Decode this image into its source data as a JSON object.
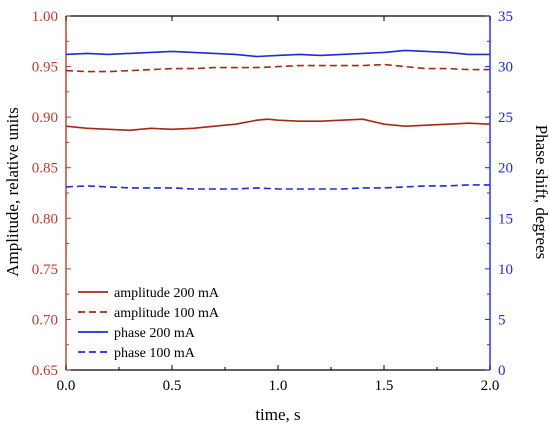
{
  "chart_data": {
    "type": "line",
    "title": "",
    "xlabel": "time, s",
    "ylabel_left": "Amplitude, relative units",
    "ylabel_right": "Phase shift, degrees",
    "xlim": [
      0.0,
      2.0
    ],
    "ylim_left": [
      0.65,
      1.0
    ],
    "ylim_right": [
      0,
      35
    ],
    "x_ticks": [
      "0.0",
      "0.5",
      "1.0",
      "1.5",
      "2.0"
    ],
    "y_left_ticks": [
      "0.65",
      "0.70",
      "0.75",
      "0.80",
      "0.85",
      "0.90",
      "0.95",
      "1.00"
    ],
    "y_right_ticks": [
      "0",
      "5",
      "10",
      "15",
      "20",
      "25",
      "30",
      "35"
    ],
    "grid": false,
    "legend_position": "bottom-left",
    "colors": {
      "left_axis": "#c0392b",
      "right_axis": "#1f2bd6",
      "amplitude": "#a52a14",
      "phase": "#1f2bd6"
    },
    "series": [
      {
        "name": "amplitude 200 mA",
        "axis": "left",
        "style": "solid",
        "x": [
          0.0,
          0.1,
          0.2,
          0.3,
          0.4,
          0.5,
          0.6,
          0.7,
          0.8,
          0.9,
          0.95,
          1.0,
          1.1,
          1.2,
          1.3,
          1.4,
          1.5,
          1.6,
          1.7,
          1.8,
          1.9,
          2.0
        ],
        "values": [
          0.891,
          0.889,
          0.888,
          0.887,
          0.889,
          0.888,
          0.889,
          0.891,
          0.893,
          0.897,
          0.898,
          0.897,
          0.896,
          0.896,
          0.897,
          0.898,
          0.893,
          0.891,
          0.892,
          0.893,
          0.894,
          0.893
        ]
      },
      {
        "name": "amplitude 100 mA",
        "axis": "left",
        "style": "dashed",
        "x": [
          0.0,
          0.1,
          0.2,
          0.3,
          0.4,
          0.5,
          0.6,
          0.7,
          0.8,
          0.9,
          1.0,
          1.1,
          1.2,
          1.3,
          1.4,
          1.5,
          1.6,
          1.7,
          1.8,
          1.9,
          2.0
        ],
        "values": [
          0.946,
          0.945,
          0.945,
          0.946,
          0.947,
          0.948,
          0.948,
          0.949,
          0.949,
          0.949,
          0.95,
          0.951,
          0.951,
          0.951,
          0.951,
          0.952,
          0.95,
          0.948,
          0.948,
          0.947,
          0.947
        ]
      },
      {
        "name": "phase 200 mA",
        "axis": "right",
        "style": "solid",
        "x": [
          0.0,
          0.1,
          0.2,
          0.3,
          0.4,
          0.5,
          0.6,
          0.7,
          0.8,
          0.9,
          1.0,
          1.1,
          1.2,
          1.3,
          1.4,
          1.5,
          1.6,
          1.7,
          1.8,
          1.9,
          2.0
        ],
        "values": [
          31.2,
          31.3,
          31.2,
          31.3,
          31.4,
          31.5,
          31.4,
          31.3,
          31.2,
          31.0,
          31.1,
          31.2,
          31.1,
          31.2,
          31.3,
          31.4,
          31.6,
          31.5,
          31.4,
          31.2,
          31.2
        ]
      },
      {
        "name": "phase 100 mA",
        "axis": "right",
        "style": "dashed",
        "x": [
          0.0,
          0.1,
          0.2,
          0.3,
          0.4,
          0.5,
          0.6,
          0.7,
          0.8,
          0.9,
          1.0,
          1.1,
          1.2,
          1.3,
          1.4,
          1.5,
          1.6,
          1.7,
          1.8,
          1.9,
          2.0
        ],
        "values": [
          18.1,
          18.2,
          18.1,
          18.0,
          18.0,
          18.0,
          17.9,
          17.9,
          17.9,
          18.0,
          17.9,
          17.9,
          17.9,
          17.9,
          18.0,
          18.0,
          18.1,
          18.2,
          18.2,
          18.3,
          18.3
        ]
      }
    ]
  }
}
